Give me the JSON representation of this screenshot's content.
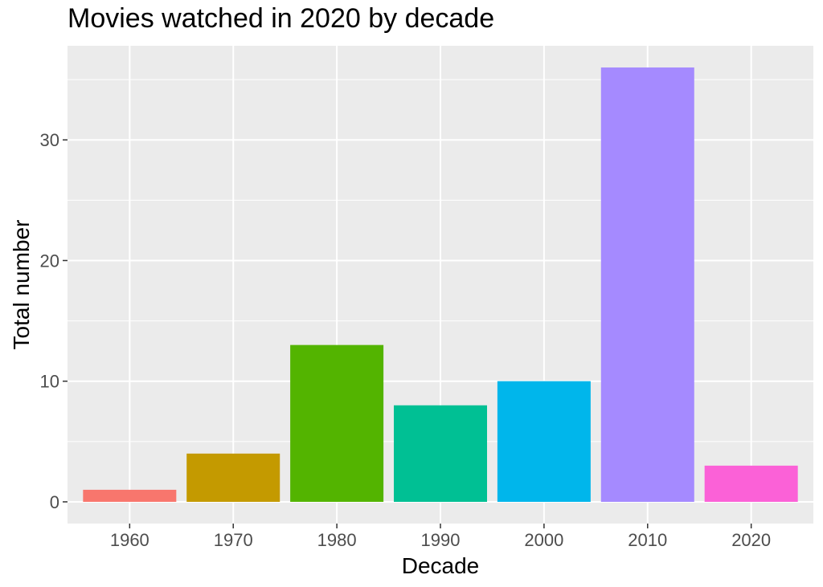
{
  "chart_data": {
    "type": "bar",
    "title": "Movies watched in 2020 by decade",
    "xlabel": "Decade",
    "ylabel": "Total number",
    "categories": [
      "1960",
      "1970",
      "1980",
      "1990",
      "2000",
      "2010",
      "2020"
    ],
    "values": [
      1,
      4,
      13,
      8,
      10,
      36,
      3
    ],
    "colors": [
      "#F8766D",
      "#C49A00",
      "#53B400",
      "#00C094",
      "#00B6EB",
      "#A58AFF",
      "#FB61D7"
    ],
    "yticks": [
      0,
      10,
      20,
      30
    ],
    "ylim": [
      -1.8,
      37.8
    ],
    "grid": true,
    "legend": "none",
    "panel_color": "#EBEBEB",
    "grid_color": "#FFFFFF"
  }
}
